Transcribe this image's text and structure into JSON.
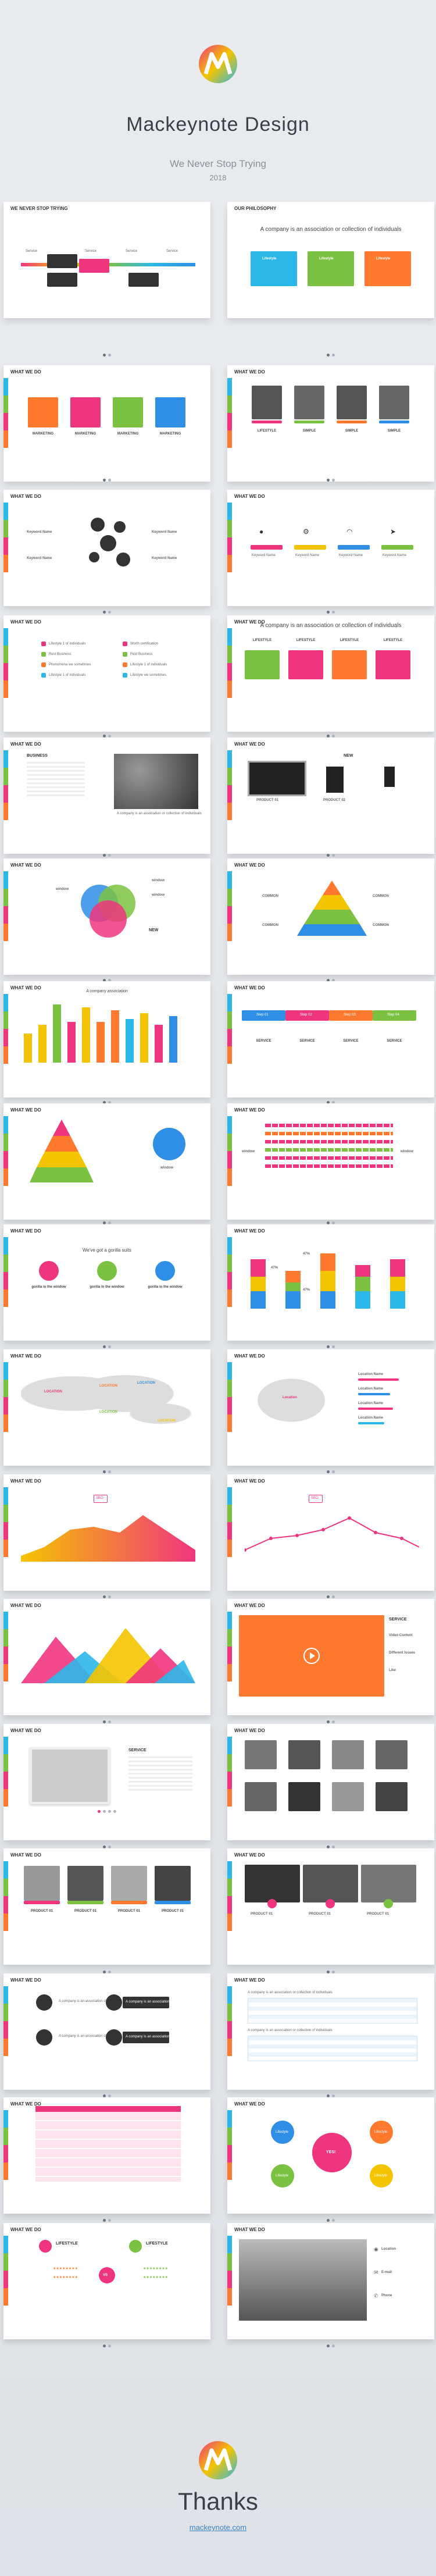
{
  "header": {
    "title": "Mackeynote Design",
    "tagline": "We Never Stop Trying",
    "year": "2018"
  },
  "slides": {
    "s1": {
      "title": "WE NEVER STOP TRYING",
      "steps": [
        "Service",
        "Service",
        "Service",
        "Service"
      ],
      "boxes": [
        "A company is an association of individuals",
        "A company is an association of individuals",
        "A company is an association of individuals",
        "A company is an association of individuals"
      ]
    },
    "s2": {
      "title": "OUR PHILOSOPHY",
      "heading": "A company is an association or collection of individuals",
      "cards": [
        "Lifestyle",
        "Lifestyle",
        "Lifestyle"
      ]
    },
    "s3": {
      "title": "WHAT WE DO",
      "labels": [
        "MARKETING",
        "MARKETING",
        "MARKETING",
        "MARKETING"
      ],
      "sub": [
        "SERVICE",
        "SERVICE",
        "SERVICE",
        "SERVICE"
      ]
    },
    "s4": {
      "title": "WHAT WE DO",
      "labels": [
        "LIFESTYLE",
        "SIMPLE",
        "SIMPLE",
        "SIMPLE"
      ],
      "sub": [
        "SERVICE",
        "SERVICE",
        "SERVICE",
        "SERVICE"
      ]
    },
    "s5": {
      "title": "WHAT WE DO",
      "labels": [
        "Keyword Name",
        "Keyword Name",
        "Keyword Name",
        "Keyword Name"
      ]
    },
    "s6": {
      "title": "WHAT WE DO",
      "labels": [
        "Keyword Name",
        "Keyword Name",
        "Keyword Name",
        "Keyword Name"
      ],
      "tags": [
        "Marketing",
        "Marketing",
        "Marketing",
        "Marketing"
      ]
    },
    "s7": {
      "title": "WHAT WE DO",
      "items": [
        "Lifestyle 1 of individuals",
        "Rest Business",
        "Phenomena we sometimes",
        "Lifestyle 1 of individuals",
        "Worth certification",
        "Rest Business",
        "Lifestyle 1 of individuals",
        "Lifestyle we sometimes"
      ]
    },
    "s8": {
      "title": "WHAT WE DO",
      "heading": "A company is an association or collection of individuals",
      "cards": [
        "LIFESTYLE",
        "LIFESTYLE",
        "LIFESTYLE",
        "LIFESTYLE"
      ]
    },
    "s9": {
      "title": "WHAT WE DO",
      "heading": "BUSINESS",
      "caption": "A company is an association or collection of individuals"
    },
    "s10": {
      "title": "WHAT WE DO",
      "new_label": "NEW",
      "products": [
        "PRODUCT 01",
        "PRODUCT 02"
      ]
    },
    "s11": {
      "title": "WHAT WE DO",
      "labels": [
        "window",
        "window",
        "window"
      ],
      "new_label": "NEW"
    },
    "s12": {
      "title": "WHAT WE DO",
      "labels": [
        "COMMON",
        "COMMON",
        "COMMON",
        "COMMON"
      ]
    },
    "s13": {
      "title": "WHAT WE DO",
      "heading": "A company association"
    },
    "s14": {
      "title": "WHAT WE DO",
      "steps": [
        "Step 01",
        "Step 02",
        "Step 03",
        "Step 04"
      ],
      "labels": [
        "SERVICE",
        "SERVICE",
        "SERVICE",
        "SERVICE"
      ]
    },
    "s15": {
      "title": "WHAT WE DO",
      "labels": [
        "COMMON",
        "COMMON",
        "COMMON",
        "COMMON"
      ],
      "side": "window"
    },
    "s16": {
      "title": "WHAT WE DO",
      "left": "window",
      "right": "window"
    },
    "s17": {
      "title": "WHAT WE DO",
      "heading": "We've got a gorilla suits",
      "labels": [
        "gorilla in the window",
        "gorilla in the window",
        "gorilla in the window"
      ]
    },
    "s18": {
      "title": "WHAT WE DO",
      "pcts": [
        "47%",
        "47%",
        "47%"
      ]
    },
    "s19": {
      "title": "WHAT WE DO",
      "labels": [
        "LOCATION",
        "LOCATION",
        "LOCATION",
        "LOCATION",
        "LOCATION"
      ]
    },
    "s20": {
      "title": "WHAT WE DO",
      "labels": [
        "Location Name",
        "Location Name",
        "Location Name",
        "Location Name"
      ],
      "city": "Location"
    },
    "s21": {
      "title": "WHAT WE DO",
      "badge": "SEO"
    },
    "s22": {
      "title": "WHAT WE DO",
      "badge": "SEO"
    },
    "s23": {
      "title": "WHAT WE DO"
    },
    "s24": {
      "title": "WHAT WE DO",
      "side_head": "SERVICE",
      "items": [
        "Video Content",
        "Different Issues",
        "Like"
      ]
    },
    "s25": {
      "title": "WHAT WE DO",
      "side_head": "SERVICE"
    },
    "s26": {
      "title": "WHAT WE DO"
    },
    "s27": {
      "title": "WHAT WE DO",
      "labels": [
        "PRODUCT 01",
        "PRODUCT 01",
        "PRODUCT 01",
        "PRODUCT 01"
      ]
    },
    "s28": {
      "title": "WHAT WE DO",
      "labels": [
        "PRODUCT 01",
        "PRODUCT 01",
        "PRODUCT 01"
      ]
    },
    "s29": {
      "title": "WHAT WE DO",
      "items": [
        "A company is an association of",
        "A company is an association of",
        "A company is an association of",
        "A company is an association of"
      ]
    },
    "s30": {
      "title": "WHAT WE DO",
      "rows": [
        "A company is an association or collection of individuals",
        "A company is an association or collection of individuals"
      ]
    },
    "s31": {
      "title": "WHAT WE DO"
    },
    "s32": {
      "title": "WHAT WE DO",
      "center": "YES!",
      "labels": [
        "Lifestyle",
        "Lifestyle",
        "Lifestyle",
        "Lifestyle"
      ]
    },
    "s33": {
      "title": "WHAT WE DO",
      "left": "LIFESTYLE",
      "right": "LIFESTYLE",
      "vs": "VS"
    },
    "s34": {
      "title": "WHAT WE DO",
      "items": [
        "Location",
        "E-mail",
        "Phone"
      ]
    }
  },
  "footer": {
    "thanks": "Thanks",
    "site": "mackeynote.com"
  },
  "colors": {
    "pink": "#f0357f",
    "green": "#7cc242",
    "orange": "#ff7a2e",
    "blue": "#2f8ee6",
    "yellow": "#f5c400",
    "cyan": "#2bb8e8",
    "dark": "#333333"
  }
}
